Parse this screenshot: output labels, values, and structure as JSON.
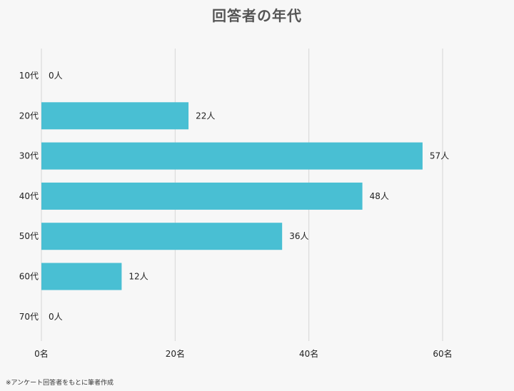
{
  "chart_data": {
    "type": "bar",
    "orientation": "horizontal",
    "title": "回答者の年代",
    "categories": [
      "10代",
      "20代",
      "30代",
      "40代",
      "50代",
      "60代",
      "70代"
    ],
    "values": [
      0,
      22,
      57,
      48,
      36,
      12,
      0
    ],
    "data_labels": [
      "0人",
      "22人",
      "57人",
      "48人",
      "36人",
      "12人",
      "0人"
    ],
    "x_ticks": [
      0,
      20,
      40,
      60
    ],
    "x_tick_labels": [
      "0名",
      "20名",
      "40名",
      "60名"
    ],
    "xlim": [
      0,
      60
    ],
    "grid": "vertical",
    "legend": "none",
    "xlabel": "",
    "ylabel": ""
  },
  "colors": {
    "bar": "#49bfd3",
    "grid": "#d6d6d6",
    "background": "#f7f7f7",
    "title": "#555555"
  },
  "footnote": "※アンケート回答者をもとに筆者作成"
}
